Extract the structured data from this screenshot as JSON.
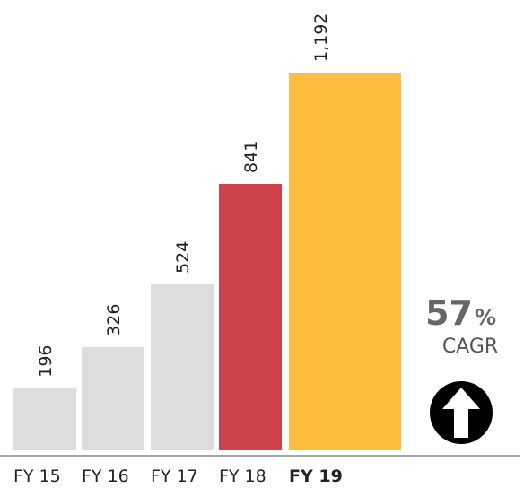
{
  "chart_data": {
    "type": "bar",
    "categories": [
      "FY 15",
      "FY 16",
      "FY 17",
      "FY 18",
      "FY 19"
    ],
    "values": [
      196,
      326,
      524,
      841,
      1192
    ],
    "value_labels": [
      "196",
      "326",
      "524",
      "841",
      "1,192"
    ],
    "colors": [
      "#dcdddf",
      "#dcdddf",
      "#dcdddf",
      "#cc434b",
      "#fdbe3f"
    ],
    "bold_categories": [
      "FY 19"
    ],
    "annotations": {
      "growth": 57,
      "growth_unit": "%",
      "growth_label": "CAGR"
    }
  }
}
